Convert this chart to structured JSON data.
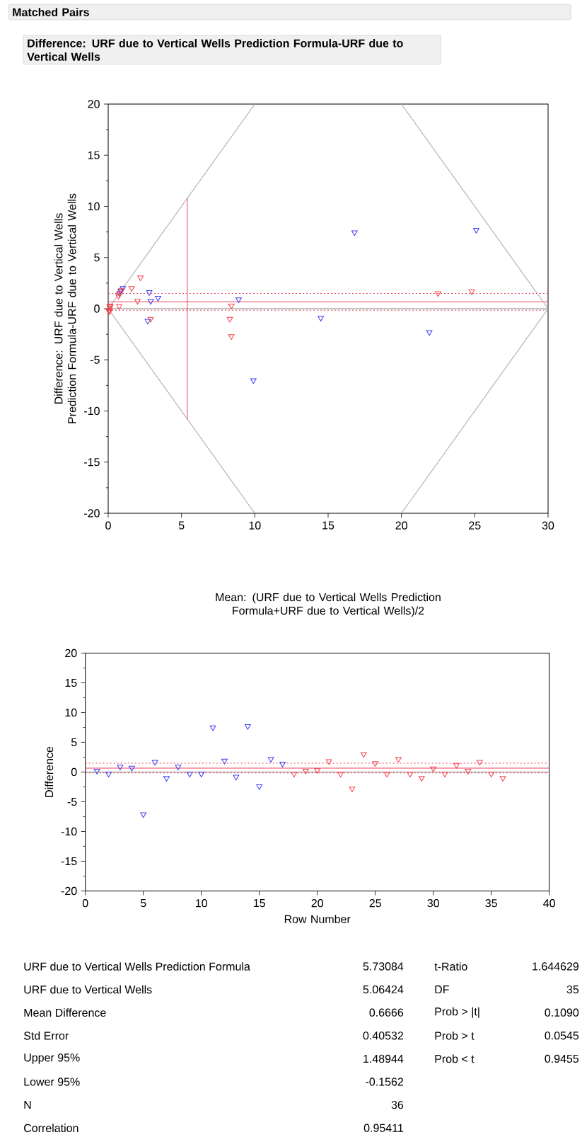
{
  "chart_data": [
    {
      "type": "scatter",
      "title": "Matched Pairs",
      "subtitle": "Difference: URF due to Vertical Wells Prediction Formula-URF due to Vertical Wells",
      "xlabel": "Mean: (URF due to Vertical Wells Prediction Formula+URF due to Vertical Wells)/2",
      "ylabel": "Difference: URF due to Vertical Wells Prediction Formula-URF due to Vertical Wells",
      "xlim": [
        0,
        30
      ],
      "ylim": [
        -20,
        20
      ],
      "xticks": [
        0,
        5,
        10,
        15,
        20,
        25,
        30
      ],
      "yticks": [
        -20,
        -15,
        -10,
        -5,
        0,
        5,
        10,
        15,
        20
      ],
      "marker": "triangle",
      "ref_lines": [
        {
          "axis": "y",
          "value": 0,
          "color": "#808080",
          "line_style": "solid"
        },
        {
          "axis": "y",
          "value": 0.6666,
          "color": "#f0465a",
          "line_style": "solid"
        },
        {
          "axis": "y",
          "value": 1.48944,
          "color": "#f0465a",
          "line_style": "dotted"
        },
        {
          "axis": "y",
          "value": -0.1562,
          "color": "#f0465a",
          "line_style": "dotted"
        }
      ],
      "series": [
        {
          "type": "line",
          "marker": "none",
          "color": "#a6a6a6",
          "x": [
            10,
            0,
            10
          ],
          "values": [
            20,
            0,
            -20
          ]
        },
        {
          "type": "line",
          "marker": "none",
          "color": "#a6a6a6",
          "x": [
            20,
            30,
            20
          ],
          "values": [
            20,
            0,
            -20
          ]
        },
        {
          "type": "line",
          "marker": "none",
          "color": "#f0465a",
          "x": [
            5.4,
            5.4
          ],
          "values": [
            -10.8,
            10.8
          ]
        },
        {
          "color": "#3b3bf5",
          "x": [
            16.8,
            25.1,
            14.5,
            21.9,
            9.9,
            8.9,
            2.7,
            2.9,
            3.4,
            2.8,
            1.0,
            0.85,
            0.8
          ],
          "values": [
            7.45,
            7.7,
            -0.9,
            -2.3,
            -7.0,
            0.9,
            -1.2,
            0.75,
            1.05,
            1.6,
            2.0,
            1.75,
            1.5
          ]
        },
        {
          "color": "#f5414b",
          "x": [
            22.5,
            24.8,
            8.4,
            8.3,
            8.4,
            2.2,
            1.6,
            2.0,
            0.75,
            2.9,
            0.7,
            0.75,
            0.9,
            0.1,
            0.05,
            0.1,
            0.15,
            0.05,
            0.12
          ],
          "values": [
            1.5,
            1.7,
            0.3,
            -1.0,
            -2.7,
            3.05,
            2.0,
            0.75,
            0.25,
            -1.0,
            1.25,
            1.5,
            1.8,
            0.25,
            -0.25,
            -0.25,
            0.3,
            -0.2,
            0.1
          ]
        }
      ]
    },
    {
      "type": "scatter",
      "xlabel": "Row Number",
      "ylabel": "Difference",
      "xlim": [
        0,
        40
      ],
      "ylim": [
        -20,
        20
      ],
      "xticks": [
        0,
        5,
        10,
        15,
        20,
        25,
        30,
        35,
        40
      ],
      "yticks": [
        -20,
        -15,
        -10,
        -5,
        0,
        5,
        10,
        15,
        20
      ],
      "marker": "triangle",
      "ref_lines": [
        {
          "axis": "y",
          "value": 0,
          "color": "#808080",
          "line_style": "solid"
        },
        {
          "axis": "y",
          "value": 0.6666,
          "color": "#f0465a",
          "line_style": "solid"
        },
        {
          "axis": "y",
          "value": 1.48944,
          "color": "#f0465a",
          "line_style": "dotted"
        },
        {
          "axis": "y",
          "value": -0.1562,
          "color": "#f0465a",
          "line_style": "dotted"
        }
      ],
      "series": [
        {
          "color": "#3b3bf5",
          "x": [
            1,
            2,
            3,
            4,
            5,
            6,
            7,
            8,
            9,
            10,
            11,
            12,
            13,
            14,
            15,
            16,
            17
          ],
          "values": [
            0.2,
            -0.3,
            0.9,
            0.7,
            -7.1,
            1.7,
            -1.0,
            0.9,
            -0.3,
            -0.3,
            7.5,
            1.9,
            -0.8,
            7.7,
            -2.4,
            2.2,
            1.4
          ]
        },
        {
          "color": "#f5414b",
          "x": [
            18,
            19,
            20,
            21,
            22,
            23,
            24,
            25,
            26,
            27,
            28,
            29,
            30,
            31,
            32,
            33,
            34,
            35,
            36
          ],
          "values": [
            -0.3,
            0.2,
            0.3,
            1.8,
            -0.3,
            -2.8,
            3.0,
            1.5,
            -0.3,
            2.2,
            -0.3,
            -1.0,
            0.6,
            -0.3,
            1.2,
            0.2,
            1.7,
            -0.3,
            -1.0
          ]
        }
      ]
    },
    {
      "type": "other",
      "annotations": [
        "URF due to Vertical Wells Prediction Formula",
        "5.73084",
        "t-Ratio",
        "1.644629",
        "URF due to Vertical Wells",
        "5.06424",
        "DF",
        "35",
        "Mean Difference",
        "0.6666",
        "Prob > |t|",
        "0.1090",
        "Std Error",
        "0.40532",
        "Prob > t",
        "0.0545",
        "Upper 95%",
        "1.48944",
        "Prob < t",
        "0.9455",
        "Lower 95%",
        "-0.1562",
        "N",
        "36",
        "Correlation",
        "0.95411"
      ]
    }
  ]
}
